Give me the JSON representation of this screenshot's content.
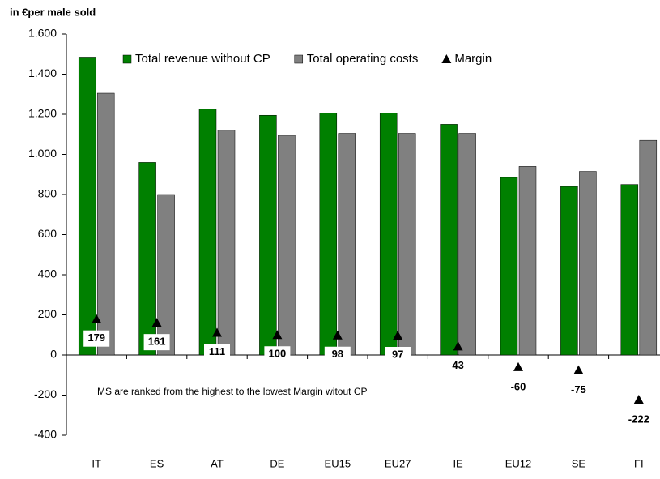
{
  "chart_data": {
    "type": "bar",
    "y_label": "in €per male sold",
    "annotation": "MS are ranked from the highest to the lowest Margin witout CP",
    "categories": [
      "IT",
      "ES",
      "AT",
      "DE",
      "EU15",
      "EU27",
      "IE",
      "EU12",
      "SE",
      "FI"
    ],
    "series": [
      {
        "name": "Total revenue without CP",
        "color": "#008000",
        "values": [
          1485,
          960,
          1225,
          1195,
          1205,
          1205,
          1150,
          885,
          840,
          850
        ]
      },
      {
        "name": "Total operating costs",
        "color": "#808080",
        "values": [
          1305,
          800,
          1120,
          1095,
          1105,
          1105,
          1105,
          940,
          915,
          1070
        ]
      },
      {
        "name": "Margin",
        "color": "#000000",
        "marker": "triangle",
        "values": [
          179,
          161,
          111,
          100,
          98,
          97,
          43,
          -60,
          -75,
          -222
        ]
      }
    ],
    "ylim": [
      -400,
      1600
    ],
    "yticks": [
      -400,
      -200,
      0,
      200,
      400,
      600,
      800,
      {
        "value": 1000,
        "label": "1.000"
      },
      {
        "value": 1200,
        "label": "1.200"
      },
      {
        "value": 1400,
        "label": "1.400"
      },
      {
        "value": 1600,
        "label": "1.600"
      }
    ],
    "legend": "top"
  }
}
